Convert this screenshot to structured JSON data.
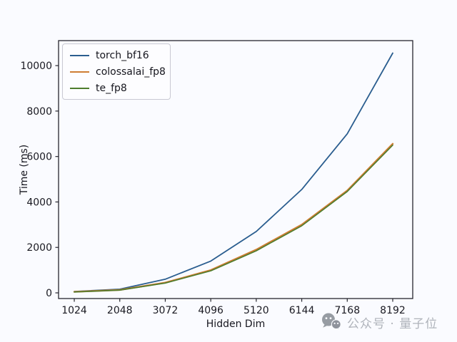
{
  "figure": {
    "background": "#fafbff",
    "watermark": {
      "icon": "wechat-icon",
      "text": "公众号 · 量子位",
      "text_color": "#a9adb5",
      "icon_color": "#8f949c"
    }
  },
  "chart_data": {
    "type": "line",
    "title": "",
    "xlabel": "Hidden Dim",
    "ylabel": "Time (ms)",
    "grid": false,
    "legend_position": "upper-left",
    "x": [
      1024,
      2048,
      3072,
      4096,
      5120,
      6144,
      7168,
      8192
    ],
    "xticks": [
      1024,
      2048,
      3072,
      4096,
      5120,
      6144,
      7168,
      8192
    ],
    "yticks": [
      0,
      2000,
      4000,
      6000,
      8000,
      10000
    ],
    "xlim": [
      670,
      8642
    ],
    "ylim": [
      -250,
      11100
    ],
    "series": [
      {
        "name": "torch_bf16",
        "color": "#2a5d8f",
        "values": [
          60,
          160,
          600,
          1400,
          2700,
          4550,
          7000,
          10550
        ]
      },
      {
        "name": "colossalai_fp8",
        "color": "#cf7d33",
        "values": [
          45,
          130,
          450,
          1000,
          1900,
          3000,
          4500,
          6560
        ]
      },
      {
        "name": "te_fp8",
        "color": "#4d7c2d",
        "values": [
          40,
          120,
          430,
          970,
          1850,
          2950,
          4460,
          6500
        ]
      }
    ],
    "spine_color": "#26262e",
    "tick_label_color": "#1a1a22"
  }
}
